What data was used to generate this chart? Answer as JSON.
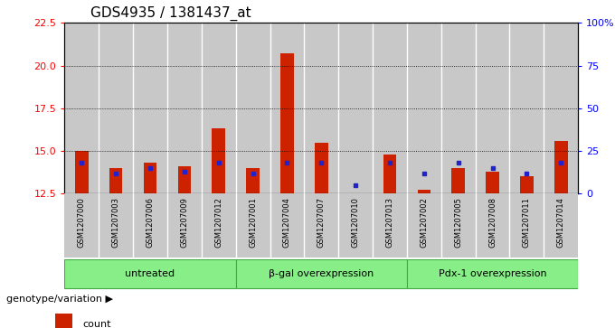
{
  "title": "GDS4935 / 1381437_at",
  "samples": [
    "GSM1207000",
    "GSM1207003",
    "GSM1207006",
    "GSM1207009",
    "GSM1207012",
    "GSM1207001",
    "GSM1207004",
    "GSM1207007",
    "GSM1207010",
    "GSM1207013",
    "GSM1207002",
    "GSM1207005",
    "GSM1207008",
    "GSM1207011",
    "GSM1207014"
  ],
  "counts": [
    15.0,
    14.0,
    14.3,
    14.1,
    16.3,
    14.0,
    20.7,
    15.5,
    12.5,
    14.8,
    12.7,
    14.0,
    13.8,
    13.5,
    15.6
  ],
  "percentiles": [
    18,
    12,
    15,
    13,
    18,
    12,
    18,
    18,
    5,
    18,
    12,
    18,
    15,
    12,
    18
  ],
  "groups": [
    {
      "label": "untreated",
      "start": 0,
      "end": 5
    },
    {
      "label": "β-gal overexpression",
      "start": 5,
      "end": 10
    },
    {
      "label": "Pdx-1 overexpression",
      "start": 10,
      "end": 15
    }
  ],
  "ymin": 12.5,
  "ymax": 22.5,
  "yticks": [
    12.5,
    15.0,
    17.5,
    20.0,
    22.5
  ],
  "right_yticks": [
    0,
    25,
    50,
    75,
    100
  ],
  "bar_color": "#cc2200",
  "blue_color": "#2222cc",
  "bg_color": "#c8c8c8",
  "plot_bg": "#ffffff",
  "group_bg": "#88ee88",
  "group_border": "#44aa44",
  "title_fontsize": 11,
  "bar_width": 0.7,
  "genotype_label": "genotype/variation"
}
